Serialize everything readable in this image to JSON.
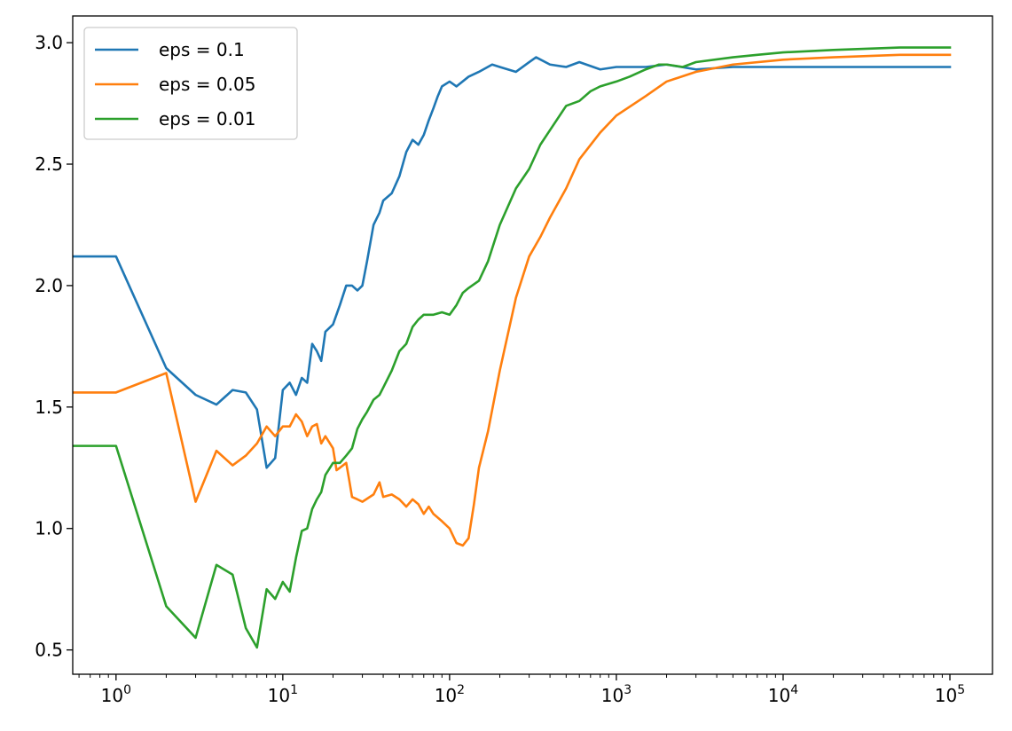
{
  "chart_data": {
    "type": "line",
    "title": "",
    "xlabel": "",
    "ylabel": "",
    "xscale": "log",
    "xlim": [
      0.55,
      180000
    ],
    "ylim": [
      0.4,
      3.11
    ],
    "grid": false,
    "legend_position": "top-left",
    "x_ticks": [
      {
        "value": 1,
        "base": "10",
        "exp": "0"
      },
      {
        "value": 10,
        "base": "10",
        "exp": "1"
      },
      {
        "value": 100,
        "base": "10",
        "exp": "2"
      },
      {
        "value": 1000,
        "base": "10",
        "exp": "3"
      },
      {
        "value": 10000,
        "base": "10",
        "exp": "4"
      },
      {
        "value": 100000,
        "base": "10",
        "exp": "5"
      }
    ],
    "y_ticks": [
      {
        "value": 0.5,
        "label": "0.5"
      },
      {
        "value": 1.0,
        "label": "1.0"
      },
      {
        "value": 1.5,
        "label": "1.5"
      },
      {
        "value": 2.0,
        "label": "2.0"
      },
      {
        "value": 2.5,
        "label": "2.5"
      },
      {
        "value": 3.0,
        "label": "3.0"
      }
    ],
    "series": [
      {
        "name": "eps = 0.1",
        "color": "#1f77b4",
        "points": [
          [
            0.5,
            2.12
          ],
          [
            1,
            2.12
          ],
          [
            2,
            1.66
          ],
          [
            3,
            1.55
          ],
          [
            4,
            1.51
          ],
          [
            5,
            1.57
          ],
          [
            6,
            1.56
          ],
          [
            7,
            1.49
          ],
          [
            8,
            1.25
          ],
          [
            9,
            1.29
          ],
          [
            10,
            1.57
          ],
          [
            11,
            1.6
          ],
          [
            12,
            1.55
          ],
          [
            13,
            1.62
          ],
          [
            14,
            1.6
          ],
          [
            15,
            1.76
          ],
          [
            16,
            1.73
          ],
          [
            17,
            1.69
          ],
          [
            18,
            1.81
          ],
          [
            20,
            1.84
          ],
          [
            22,
            1.92
          ],
          [
            24,
            2.0
          ],
          [
            26,
            2.0
          ],
          [
            28,
            1.98
          ],
          [
            30,
            2.0
          ],
          [
            32,
            2.1
          ],
          [
            35,
            2.25
          ],
          [
            38,
            2.3
          ],
          [
            40,
            2.35
          ],
          [
            45,
            2.38
          ],
          [
            50,
            2.45
          ],
          [
            55,
            2.55
          ],
          [
            60,
            2.6
          ],
          [
            65,
            2.58
          ],
          [
            70,
            2.62
          ],
          [
            75,
            2.68
          ],
          [
            80,
            2.73
          ],
          [
            85,
            2.78
          ],
          [
            90,
            2.82
          ],
          [
            100,
            2.84
          ],
          [
            110,
            2.82
          ],
          [
            130,
            2.86
          ],
          [
            150,
            2.88
          ],
          [
            180,
            2.91
          ],
          [
            200,
            2.9
          ],
          [
            250,
            2.88
          ],
          [
            300,
            2.92
          ],
          [
            330,
            2.94
          ],
          [
            400,
            2.91
          ],
          [
            500,
            2.9
          ],
          [
            600,
            2.92
          ],
          [
            800,
            2.89
          ],
          [
            1000,
            2.9
          ],
          [
            1500,
            2.9
          ],
          [
            2000,
            2.91
          ],
          [
            3000,
            2.89
          ],
          [
            5000,
            2.9
          ],
          [
            10000,
            2.9
          ],
          [
            20000,
            2.9
          ],
          [
            50000,
            2.9
          ],
          [
            100000,
            2.9
          ]
        ]
      },
      {
        "name": "eps = 0.05",
        "color": "#ff7f0e",
        "points": [
          [
            0.5,
            1.56
          ],
          [
            1,
            1.56
          ],
          [
            2,
            1.64
          ],
          [
            3,
            1.11
          ],
          [
            4,
            1.32
          ],
          [
            5,
            1.26
          ],
          [
            6,
            1.3
          ],
          [
            7,
            1.35
          ],
          [
            8,
            1.42
          ],
          [
            9,
            1.38
          ],
          [
            10,
            1.42
          ],
          [
            11,
            1.42
          ],
          [
            12,
            1.47
          ],
          [
            13,
            1.44
          ],
          [
            14,
            1.38
          ],
          [
            15,
            1.42
          ],
          [
            16,
            1.43
          ],
          [
            17,
            1.35
          ],
          [
            18,
            1.38
          ],
          [
            20,
            1.33
          ],
          [
            21,
            1.24
          ],
          [
            22,
            1.25
          ],
          [
            24,
            1.27
          ],
          [
            25,
            1.2
          ],
          [
            26,
            1.13
          ],
          [
            28,
            1.12
          ],
          [
            30,
            1.11
          ],
          [
            35,
            1.14
          ],
          [
            38,
            1.19
          ],
          [
            40,
            1.13
          ],
          [
            45,
            1.14
          ],
          [
            50,
            1.12
          ],
          [
            55,
            1.09
          ],
          [
            60,
            1.12
          ],
          [
            65,
            1.1
          ],
          [
            70,
            1.06
          ],
          [
            75,
            1.09
          ],
          [
            80,
            1.06
          ],
          [
            90,
            1.03
          ],
          [
            100,
            1.0
          ],
          [
            110,
            0.94
          ],
          [
            120,
            0.93
          ],
          [
            130,
            0.96
          ],
          [
            140,
            1.1
          ],
          [
            150,
            1.25
          ],
          [
            170,
            1.4
          ],
          [
            200,
            1.65
          ],
          [
            250,
            1.95
          ],
          [
            300,
            2.12
          ],
          [
            350,
            2.2
          ],
          [
            400,
            2.28
          ],
          [
            500,
            2.4
          ],
          [
            600,
            2.52
          ],
          [
            800,
            2.63
          ],
          [
            1000,
            2.7
          ],
          [
            1500,
            2.78
          ],
          [
            2000,
            2.84
          ],
          [
            3000,
            2.88
          ],
          [
            5000,
            2.91
          ],
          [
            10000,
            2.93
          ],
          [
            20000,
            2.94
          ],
          [
            50000,
            2.95
          ],
          [
            100000,
            2.95
          ]
        ]
      },
      {
        "name": "eps = 0.01",
        "color": "#2ca02c",
        "points": [
          [
            0.5,
            1.34
          ],
          [
            1,
            1.34
          ],
          [
            2,
            0.68
          ],
          [
            3,
            0.55
          ],
          [
            4,
            0.85
          ],
          [
            5,
            0.81
          ],
          [
            6,
            0.59
          ],
          [
            7,
            0.51
          ],
          [
            8,
            0.75
          ],
          [
            9,
            0.71
          ],
          [
            10,
            0.78
          ],
          [
            11,
            0.74
          ],
          [
            12,
            0.88
          ],
          [
            13,
            0.99
          ],
          [
            14,
            1.0
          ],
          [
            15,
            1.08
          ],
          [
            16,
            1.12
          ],
          [
            17,
            1.15
          ],
          [
            18,
            1.22
          ],
          [
            20,
            1.27
          ],
          [
            22,
            1.27
          ],
          [
            24,
            1.3
          ],
          [
            26,
            1.33
          ],
          [
            28,
            1.41
          ],
          [
            30,
            1.45
          ],
          [
            32,
            1.48
          ],
          [
            35,
            1.53
          ],
          [
            38,
            1.55
          ],
          [
            40,
            1.58
          ],
          [
            45,
            1.65
          ],
          [
            50,
            1.73
          ],
          [
            55,
            1.76
          ],
          [
            60,
            1.83
          ],
          [
            65,
            1.86
          ],
          [
            70,
            1.88
          ],
          [
            80,
            1.88
          ],
          [
            90,
            1.89
          ],
          [
            100,
            1.88
          ],
          [
            110,
            1.92
          ],
          [
            120,
            1.97
          ],
          [
            130,
            1.99
          ],
          [
            150,
            2.02
          ],
          [
            170,
            2.1
          ],
          [
            200,
            2.25
          ],
          [
            250,
            2.4
          ],
          [
            300,
            2.48
          ],
          [
            350,
            2.58
          ],
          [
            400,
            2.64
          ],
          [
            500,
            2.74
          ],
          [
            600,
            2.76
          ],
          [
            700,
            2.8
          ],
          [
            800,
            2.82
          ],
          [
            1000,
            2.84
          ],
          [
            1200,
            2.86
          ],
          [
            1500,
            2.89
          ],
          [
            1800,
            2.91
          ],
          [
            2000,
            2.91
          ],
          [
            2500,
            2.9
          ],
          [
            3000,
            2.92
          ],
          [
            5000,
            2.94
          ],
          [
            7000,
            2.95
          ],
          [
            10000,
            2.96
          ],
          [
            20000,
            2.97
          ],
          [
            50000,
            2.98
          ],
          [
            100000,
            2.98
          ]
        ]
      }
    ]
  }
}
